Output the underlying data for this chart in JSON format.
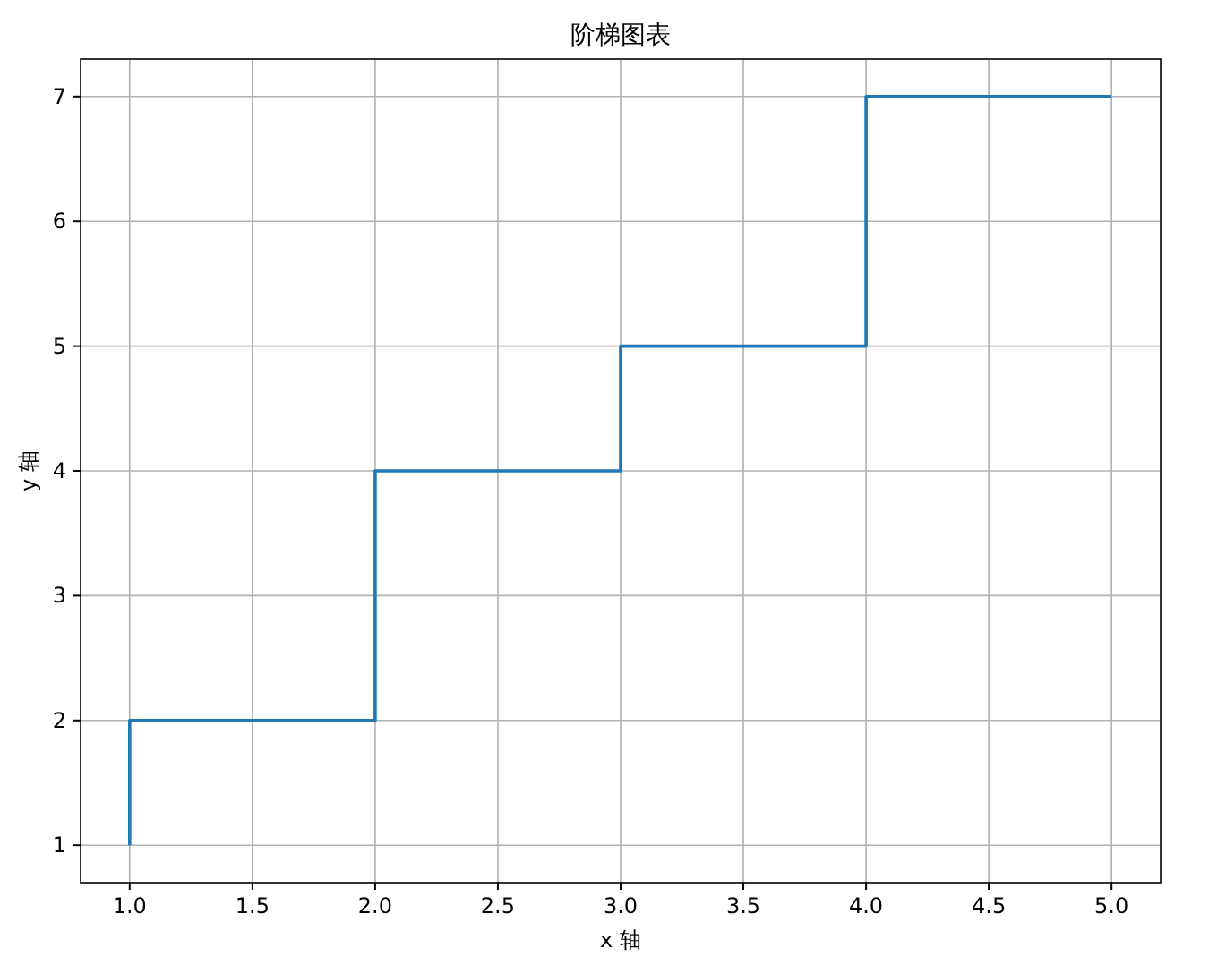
{
  "chart_data": {
    "type": "step",
    "title": "阶梯图表",
    "xlabel": "x 轴",
    "ylabel": "y 轴",
    "x": [
      1,
      2,
      3,
      4,
      5
    ],
    "series": [
      {
        "color": "#1f77b4",
        "values": [
          1,
          2,
          4,
          5,
          7
        ]
      }
    ],
    "xlim": [
      0.8,
      5.2
    ],
    "ylim": [
      0.7,
      7.3
    ],
    "xticks": [
      {
        "value": 1,
        "label": "1.0"
      },
      {
        "value": 1.5,
        "label": "1.5"
      },
      {
        "value": 2,
        "label": "2.0"
      },
      {
        "value": 2.5,
        "label": "2.5"
      },
      {
        "value": 3,
        "label": "3.0"
      },
      {
        "value": 3.5,
        "label": "3.5"
      },
      {
        "value": 4,
        "label": "4.0"
      },
      {
        "value": 4.5,
        "label": "4.5"
      },
      {
        "value": 5,
        "label": "5.0"
      }
    ],
    "yticks": [
      1,
      2,
      3,
      4,
      5,
      6,
      7
    ],
    "grid": true
  }
}
